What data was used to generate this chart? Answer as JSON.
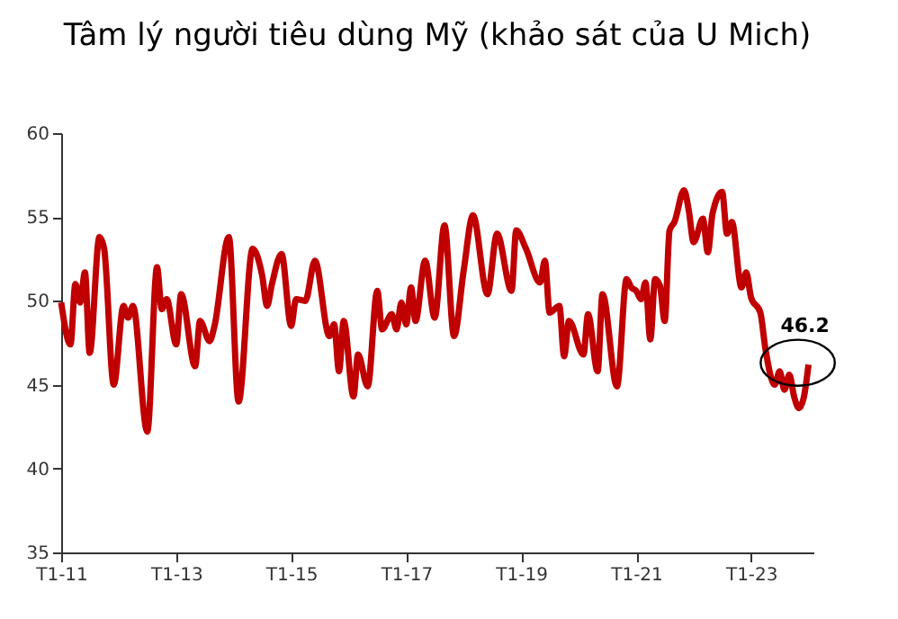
{
  "chart_data": {
    "type": "line",
    "title": "Tâm lý người tiêu dùng Mỹ (khảo sát của U Mich)",
    "x": [
      "2011-01",
      "2011-03",
      "2011-04",
      "2011-05",
      "2011-06",
      "2011-07",
      "2011-09",
      "2011-10",
      "2011-12",
      "2012-02",
      "2012-03",
      "2012-04",
      "2012-07",
      "2012-09",
      "2012-10",
      "2012-11",
      "2013-01",
      "2013-02",
      "2013-05",
      "2013-06",
      "2013-08",
      "2013-09",
      "2013-12",
      "2014-02",
      "2014-05",
      "2014-07",
      "2014-08",
      "2014-09",
      "2014-11",
      "2015-01",
      "2015-02",
      "2015-04",
      "2015-06",
      "2015-09",
      "2015-10",
      "2015-11",
      "2015-12",
      "2016-02",
      "2016-03",
      "2016-05",
      "2016-07",
      "2016-08",
      "2016-10",
      "2016-11",
      "2016-12",
      "2017-01",
      "2017-02",
      "2017-03",
      "2017-05",
      "2017-07",
      "2017-09",
      "2017-11",
      "2018-01",
      "2018-03",
      "2018-06",
      "2018-08",
      "2018-11",
      "2018-12",
      "2019-02",
      "2019-05",
      "2019-06",
      "2019-07",
      "2019-09",
      "2019-10",
      "2019-11",
      "2020-02",
      "2020-03",
      "2020-05",
      "2020-06",
      "2020-09",
      "2020-11",
      "2020-12",
      "2021-01",
      "2021-02",
      "2021-03",
      "2021-04",
      "2021-05",
      "2021-06",
      "2021-07",
      "2021-08",
      "2021-09",
      "2021-11",
      "2021-12",
      "2022-01",
      "2022-03",
      "2022-04",
      "2022-05",
      "2022-07",
      "2022-08",
      "2022-09",
      "2022-11",
      "2022-12",
      "2023-01",
      "2023-03",
      "2023-04",
      "2023-06",
      "2023-07",
      "2023-08",
      "2023-09",
      "2023-10",
      "2023-11",
      "2023-12",
      "2024-01"
    ],
    "series": [
      {
        "color": "#c00000",
        "values": [
          49.9,
          47.4,
          51.0,
          49.9,
          51.7,
          46.9,
          53.8,
          53.1,
          45.0,
          49.7,
          49.0,
          49.7,
          42.2,
          52.0,
          49.5,
          50.1,
          47.4,
          50.4,
          46.1,
          48.8,
          47.6,
          48.5,
          53.8,
          44.0,
          53.1,
          51.5,
          49.7,
          51.0,
          52.8,
          48.5,
          50.1,
          50.0,
          52.4,
          47.9,
          48.6,
          45.8,
          48.8,
          44.3,
          46.8,
          44.9,
          50.6,
          48.3,
          49.2,
          48.3,
          49.9,
          48.6,
          50.8,
          48.8,
          52.4,
          49.0,
          54.5,
          47.9,
          51.8,
          55.1,
          50.4,
          54.0,
          50.6,
          54.2,
          53.1,
          51.1,
          52.4,
          49.3,
          49.7,
          46.7,
          48.8,
          46.8,
          49.2,
          45.8,
          50.4,
          44.9,
          51.3,
          50.8,
          50.6,
          50.1,
          51.1,
          47.7,
          51.3,
          50.9,
          48.8,
          54.2,
          54.7,
          56.6,
          55.4,
          53.5,
          54.9,
          52.9,
          55.2,
          56.5,
          54.0,
          54.7,
          50.8,
          51.7,
          50.2,
          49.3,
          47.2,
          45.0,
          45.8,
          44.7,
          45.6,
          44.3,
          43.6,
          44.2,
          46.2
        ]
      }
    ],
    "xlim": [
      "2011-01",
      "2024-02"
    ],
    "xticks": [
      {
        "value": "2011-01",
        "label": "T1-11"
      },
      {
        "value": "2013-01",
        "label": "T1-13"
      },
      {
        "value": "2015-01",
        "label": "T1-15"
      },
      {
        "value": "2017-01",
        "label": "T1-17"
      },
      {
        "value": "2019-01",
        "label": "T1-19"
      },
      {
        "value": "2021-01",
        "label": "T1-21"
      },
      {
        "value": "2023-01",
        "label": "T1-23"
      }
    ],
    "ylim": [
      35,
      60
    ],
    "yticks": [
      35,
      40,
      45,
      50,
      55,
      60
    ],
    "grid": false,
    "marker": "none",
    "line_style": "solid",
    "annotations": [
      {
        "text": "46.2",
        "x": "2024-01",
        "y": 46.2
      }
    ]
  }
}
